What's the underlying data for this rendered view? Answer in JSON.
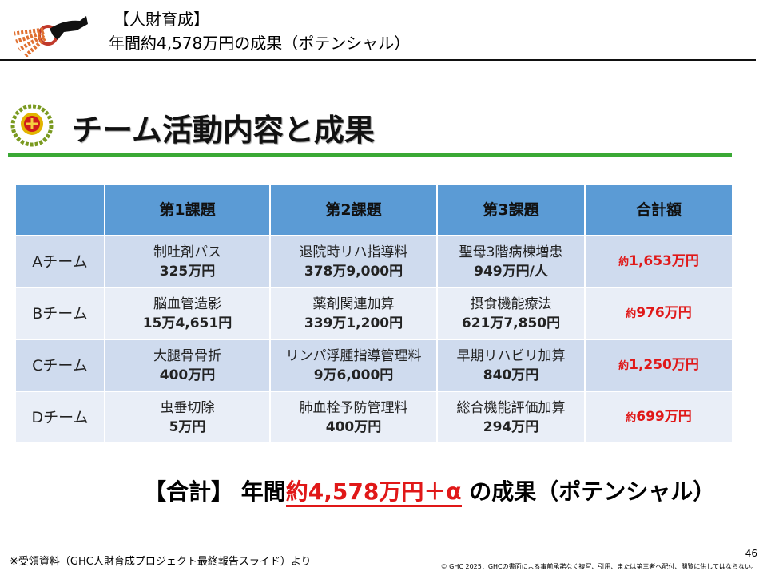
{
  "header": {
    "category": "【人財育成】",
    "title": "年間約4,578万円の成果（ポテンシャル）"
  },
  "section_title": "チーム活動内容と成果",
  "table": {
    "headers": [
      "第1課題",
      "第2課題",
      "第3課題",
      "合計額"
    ],
    "rows": [
      {
        "team": "Aチーム",
        "cells": [
          {
            "name": "制吐剤パス",
            "amount": "325万円"
          },
          {
            "name": "退院時リハ指導料",
            "amount": "378万9,000円"
          },
          {
            "name": "聖母3階病棟増患",
            "amount": "949万円/人"
          }
        ],
        "total": {
          "prefix": "約",
          "amount": "1,653万円"
        }
      },
      {
        "team": "Bチーム",
        "cells": [
          {
            "name": "脳血管造影",
            "amount": "15万4,651円"
          },
          {
            "name": "薬剤関連加算",
            "amount": "339万1,200円"
          },
          {
            "name": "摂食機能療法",
            "amount": "621万7,850円"
          }
        ],
        "total": {
          "prefix": "約",
          "amount": "976万円"
        }
      },
      {
        "team": "Cチーム",
        "cells": [
          {
            "name": "大腿骨骨折",
            "amount": "400万円"
          },
          {
            "name": "リンパ浮腫指導管理料",
            "amount": "9万6,000円"
          },
          {
            "name": "早期リハビリ加算",
            "amount": "840万円"
          }
        ],
        "total": {
          "prefix": "約",
          "amount": "1,250万円"
        }
      },
      {
        "team": "Dチーム",
        "cells": [
          {
            "name": "虫垂切除",
            "amount": "5万円"
          },
          {
            "name": "肺血栓予防管理料",
            "amount": "400万円"
          },
          {
            "name": "総合機能評価加算",
            "amount": "294万円"
          }
        ],
        "total": {
          "prefix": "約",
          "amount": "699万円"
        }
      }
    ]
  },
  "summary": {
    "lead": "【合計】 年間",
    "highlight": "約4,578万円＋α",
    "tail": " の成果（ポテンシャル）"
  },
  "footnote": "※受領資料（GHC人財育成プロジェクト最終報告スライド）より",
  "page_number": "46",
  "copyright": "© GHC 2025．GHCの書面による事前承諾なく複写、引用、または第三者へ配付、閲覧に供してはならない。"
}
